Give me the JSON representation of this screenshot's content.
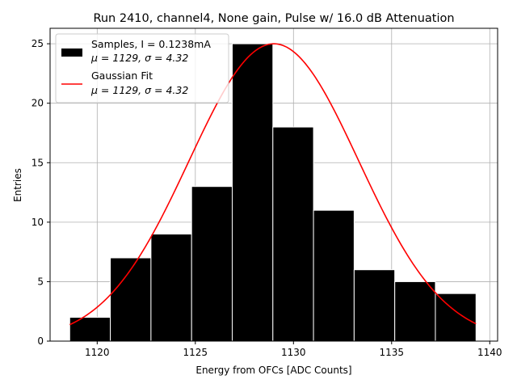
{
  "chart_data": {
    "type": "bar",
    "title": "Run 2410, channel4, None gain, Pulse w/ 16.0 dB Attenuation",
    "xlabel": "Energy from OFCs [ADC Counts]",
    "ylabel": "Entries",
    "xlim": [
      1117.6,
      1140.4
    ],
    "ylim": [
      0,
      26.3
    ],
    "x_ticks": [
      1120,
      1125,
      1130,
      1135,
      1140
    ],
    "y_ticks": [
      0,
      5,
      10,
      15,
      20,
      25
    ],
    "grid": true,
    "legend_position": "upper-left",
    "histogram": {
      "name_line1": "Samples, I = 0.1238mA",
      "name_line2": "μ = 1129, σ = 4.32",
      "color": "#000000",
      "edge_color": "#ffffff",
      "bin_edges": [
        1118.6,
        1120.67,
        1122.74,
        1124.81,
        1126.88,
        1128.95,
        1131.02,
        1133.09,
        1135.16,
        1137.23,
        1139.3
      ],
      "counts": [
        2,
        7,
        9,
        13,
        25,
        18,
        11,
        6,
        5,
        4
      ]
    },
    "fit": {
      "name_line1": "Gaussian Fit",
      "name_line2": "μ = 1129, σ = 4.32",
      "color": "#ff0000",
      "mu": 1129.0,
      "sigma": 4.32,
      "amplitude": 25.0,
      "x_range": [
        1118.6,
        1139.3
      ]
    }
  }
}
